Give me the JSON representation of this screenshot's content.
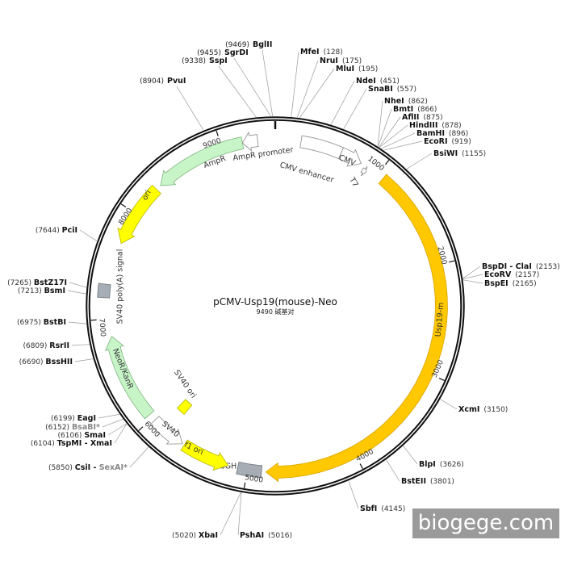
{
  "plasmid": {
    "name": "pCMV-Usp19(mouse)-Neo",
    "length": 9490,
    "size_label": "9490 碱基对"
  },
  "watermark": "biogege.com",
  "colors": {
    "cds": "#ffc800",
    "origin": "#ffff00",
    "marker": "#c8f5c8",
    "terminator": "#a6adb4",
    "promoter": "#ffffff"
  },
  "ticks": [
    1000,
    2000,
    3000,
    4000,
    5000,
    6000,
    7000,
    8000,
    9000
  ],
  "sites": [
    {
      "name": "BglII",
      "pos": 9469
    },
    {
      "name": "SgrDI",
      "pos": 9455
    },
    {
      "name": "SspI",
      "pos": 9338
    },
    {
      "name": "PvuI",
      "pos": 8904
    },
    {
      "name": "MfeI",
      "pos": 128
    },
    {
      "name": "NruI",
      "pos": 175
    },
    {
      "name": "MluI",
      "pos": 195
    },
    {
      "name": "NdeI",
      "pos": 451
    },
    {
      "name": "SnaBI",
      "pos": 557
    },
    {
      "name": "NheI",
      "pos": 862
    },
    {
      "name": "BmtI",
      "pos": 866
    },
    {
      "name": "AflII",
      "pos": 875
    },
    {
      "name": "HindIII",
      "pos": 878
    },
    {
      "name": "BamHI",
      "pos": 896
    },
    {
      "name": "EcoRI",
      "pos": 919
    },
    {
      "name": "BsiWI",
      "pos": 1155
    },
    {
      "name": "BspDI - ClaI",
      "pos": 2153
    },
    {
      "name": "EcoRV",
      "pos": 2157
    },
    {
      "name": "BspEI",
      "pos": 2165
    },
    {
      "name": "XcmI",
      "pos": 3150
    },
    {
      "name": "BlpI",
      "pos": 3626
    },
    {
      "name": "BstEII",
      "pos": 3801
    },
    {
      "name": "SbfI",
      "pos": 4145
    },
    {
      "name": "PshAI",
      "pos": 5016
    },
    {
      "name": "XbaI",
      "pos": 5020
    },
    {
      "name": "CsiI - ",
      "name2": "SexAI*",
      "pos": 5850
    },
    {
      "name": "TspMI - XmaI",
      "pos": 6104
    },
    {
      "name": "SmaI",
      "pos": 6106
    },
    {
      "name": "BsaBI*",
      "pos": 6152,
      "gray": true
    },
    {
      "name": "EagI",
      "pos": 6199
    },
    {
      "name": "BssHII",
      "pos": 6690
    },
    {
      "name": "RsrII",
      "pos": 6809
    },
    {
      "name": "BstBI",
      "pos": 6975
    },
    {
      "name": "BsmI",
      "pos": 7213
    },
    {
      "name": "BstZ17I",
      "pos": 7265
    },
    {
      "name": "PciI",
      "pos": 7644
    }
  ],
  "features": [
    {
      "name": "CMV enhancer",
      "start": 235,
      "end": 615,
      "type": "promoter",
      "dir": "none"
    },
    {
      "name": "CMV",
      "start": 615,
      "end": 820,
      "type": "promoter",
      "dir": "cw"
    },
    {
      "name": "T7",
      "start": 860,
      "end": 900,
      "type": "promoter",
      "dir": "cw"
    },
    {
      "name": "Usp19-m",
      "start": 1060,
      "end": 4830,
      "type": "cds",
      "dir": "cw"
    },
    {
      "name": "bGH",
      "start": 4870,
      "end": 5090,
      "type": "terminator",
      "dir": "none"
    },
    {
      "name": "f1 ori",
      "start": 5180,
      "end": 5620,
      "type": "origin",
      "dir": "ccw"
    },
    {
      "name": "SV40",
      "start": 5640,
      "end": 5970,
      "type": "promoter",
      "dir": "ccw"
    },
    {
      "name": "SV40 ori",
      "start": 5800,
      "end": 5900,
      "type": "origin",
      "dir": "none"
    },
    {
      "name": "NeoR/KanR",
      "start": 6040,
      "end": 6840,
      "type": "marker",
      "dir": "cw"
    },
    {
      "name": "SV40 poly(A) signal",
      "start": 7190,
      "end": 7310,
      "type": "terminator",
      "dir": "none"
    },
    {
      "name": "ori",
      "start": 7700,
      "end": 8290,
      "type": "origin",
      "dir": "ccw"
    },
    {
      "name": "AmpR",
      "start": 8340,
      "end": 9190,
      "type": "marker",
      "dir": "ccw"
    },
    {
      "name": "AmpR promoter",
      "start": 9190,
      "end": 9330,
      "type": "promoter",
      "dir": "ccw"
    }
  ]
}
